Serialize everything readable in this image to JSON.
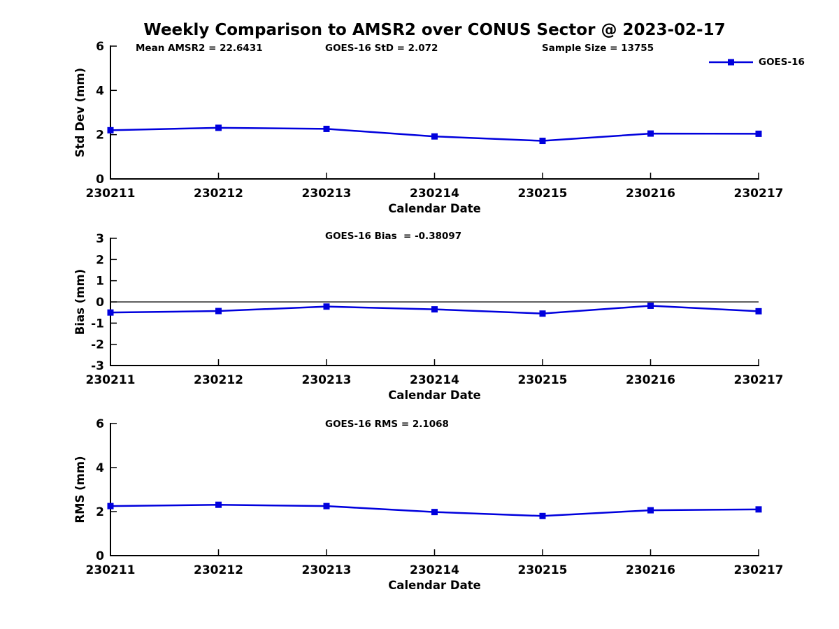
{
  "title": "Weekly Comparison to AMSR2 over CONUS Sector @ 2023-02-17",
  "annotations": {
    "mean_amsr2": "Mean AMSR2 = 22.6431",
    "goes16_std": "GOES-16 StD = 2.072",
    "sample_size": "Sample Size = 13755",
    "goes16_bias": "GOES-16 Bias  = -0.38097",
    "goes16_rms": "GOES-16 RMS = 2.1068"
  },
  "legend": {
    "label": "GOES-16",
    "position": "top-right-above-first-plot"
  },
  "colors": {
    "line": "#0000dd",
    "axis": "#000000",
    "background": "#ffffff"
  },
  "chart_data": [
    {
      "type": "line",
      "title": "",
      "categories": [
        "230211",
        "230212",
        "230213",
        "230214",
        "230215",
        "230216",
        "230217"
      ],
      "series": [
        {
          "name": "GOES-16",
          "values": [
            2.2,
            2.31,
            2.26,
            1.92,
            1.72,
            2.05,
            2.04
          ]
        }
      ],
      "xlabel": "Calendar Date",
      "ylabel": "Std Dev (mm)",
      "ylim": [
        0,
        6
      ],
      "yticks": [
        0,
        2,
        4,
        6
      ],
      "zero_line": false,
      "grid": false,
      "marker": "square",
      "annotation_refs": [
        "mean_amsr2",
        "goes16_std",
        "sample_size"
      ]
    },
    {
      "type": "line",
      "title": "",
      "categories": [
        "230211",
        "230212",
        "230213",
        "230214",
        "230215",
        "230216",
        "230217"
      ],
      "series": [
        {
          "name": "GOES-16",
          "values": [
            -0.5,
            -0.43,
            -0.22,
            -0.35,
            -0.55,
            -0.18,
            -0.44
          ]
        }
      ],
      "xlabel": "Calendar Date",
      "ylabel": "Bias (mm)",
      "ylim": [
        -3,
        3
      ],
      "yticks": [
        -3,
        -2,
        -1,
        0,
        1,
        2,
        3
      ],
      "zero_line": true,
      "grid": false,
      "marker": "square",
      "annotation_refs": [
        "goes16_bias"
      ]
    },
    {
      "type": "line",
      "title": "",
      "categories": [
        "230211",
        "230212",
        "230213",
        "230214",
        "230215",
        "230216",
        "230217"
      ],
      "series": [
        {
          "name": "GOES-16",
          "values": [
            2.25,
            2.31,
            2.25,
            1.98,
            1.8,
            2.06,
            2.1
          ]
        }
      ],
      "xlabel": "Calendar Date",
      "ylabel": "RMS (mm)",
      "ylim": [
        0,
        6
      ],
      "yticks": [
        0,
        2,
        4,
        6
      ],
      "zero_line": false,
      "grid": false,
      "marker": "square",
      "annotation_refs": [
        "goes16_rms"
      ]
    }
  ]
}
